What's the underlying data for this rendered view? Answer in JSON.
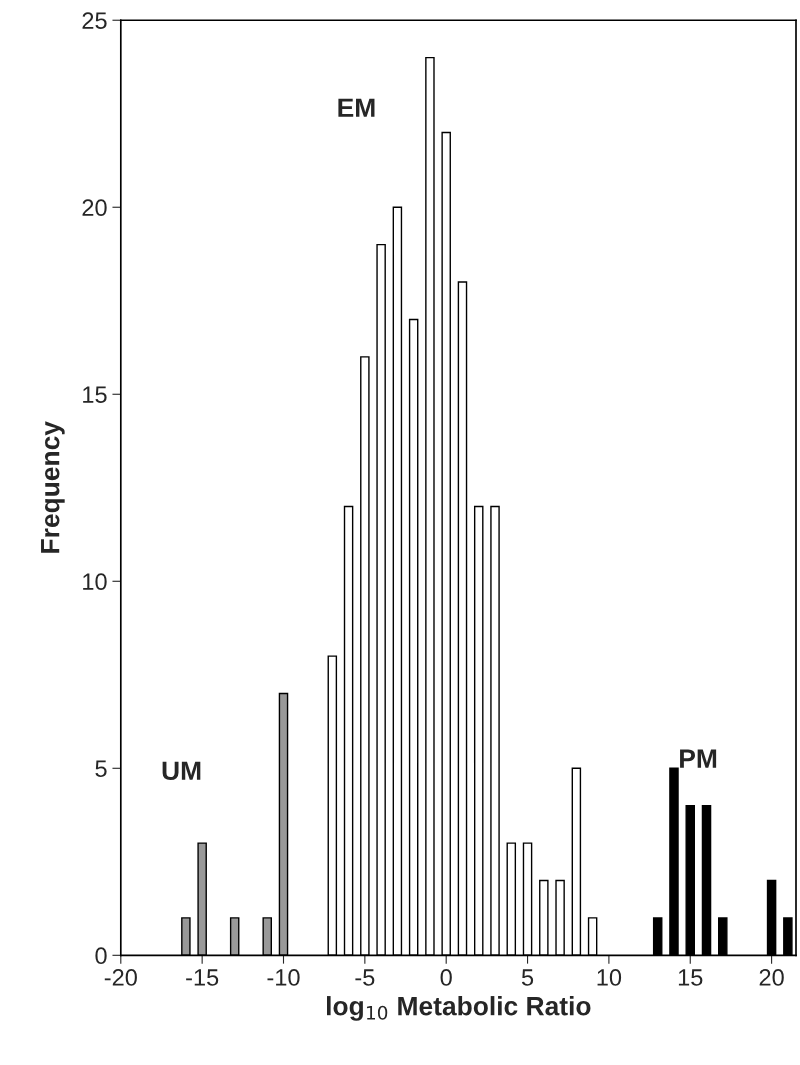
{
  "chart_data": {
    "type": "bar",
    "xlabel": "log$_{10}$ Metabolic Ratio",
    "ylabel": "Frequency",
    "series": [
      {
        "name": "UM",
        "color": "#999999",
        "x": [
          -16,
          -15,
          -13,
          -11,
          -10
        ],
        "values": [
          1,
          3,
          1,
          1,
          7
        ]
      },
      {
        "name": "EM",
        "color": "#ffffff",
        "x": [
          -7,
          -6,
          -5,
          -4,
          -3,
          -2,
          -1,
          0,
          1,
          2,
          3,
          4,
          5,
          6,
          7,
          8,
          9
        ],
        "values": [
          8,
          12,
          16,
          19,
          20,
          17,
          24,
          22,
          18,
          12,
          12,
          3,
          3,
          2,
          2,
          5,
          1
        ]
      },
      {
        "name": "PM",
        "color": "#000000",
        "x": [
          13,
          14,
          15,
          16,
          17,
          20,
          21
        ],
        "values": [
          1,
          5,
          4,
          4,
          1,
          2,
          1
        ]
      }
    ],
    "xlim": [
      -20,
      21.5
    ],
    "xticks": [
      -20,
      -15,
      -10,
      -5,
      0,
      5,
      10,
      15,
      20
    ],
    "ylim": [
      0,
      25
    ],
    "yticks": [
      0,
      5,
      10,
      15,
      20,
      25
    ],
    "grid": false,
    "legend": false
  }
}
